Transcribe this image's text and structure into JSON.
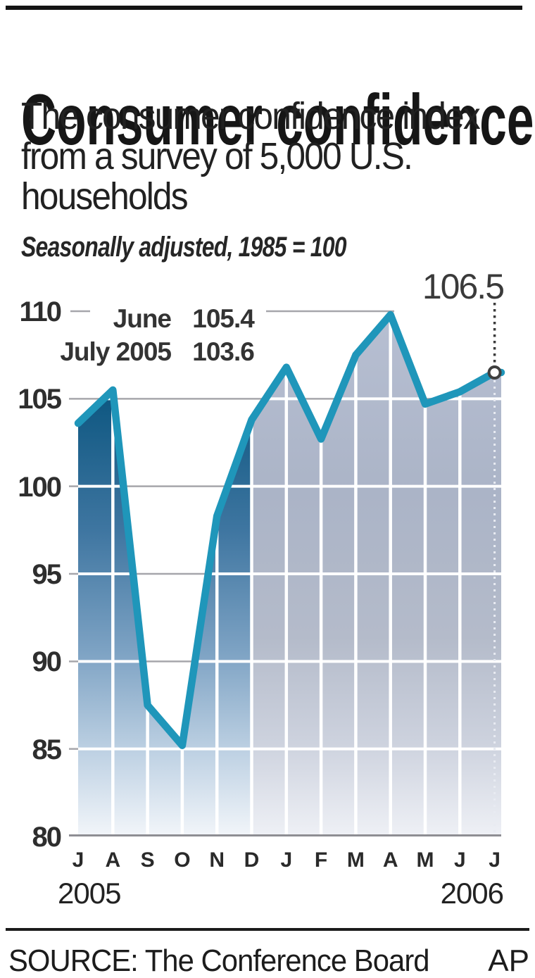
{
  "header": {
    "title": "Consumer confidence",
    "subtitle_lines": [
      "The consumer confidence index",
      "from a survey of 5,000 U.S.",
      "households"
    ],
    "note": "Seasonally adjusted, 1985 = 100"
  },
  "footer": {
    "source": "SOURCE: The Conference Board",
    "credit": "AP"
  },
  "chart_data": {
    "type": "area",
    "title": "Consumer confidence",
    "note": "Seasonally adjusted, 1985 = 100",
    "x_labels": [
      "J",
      "A",
      "S",
      "O",
      "N",
      "D",
      "J",
      "F",
      "M",
      "A",
      "M",
      "J",
      "J"
    ],
    "months_full": [
      "Jul 2005",
      "Aug 2005",
      "Sep 2005",
      "Oct 2005",
      "Nov 2005",
      "Dec 2005",
      "Jan 2006",
      "Feb 2006",
      "Mar 2006",
      "Apr 2006",
      "May 2006",
      "Jun 2006",
      "Jul 2006"
    ],
    "values": [
      103.6,
      105.5,
      87.5,
      85.2,
      98.3,
      103.8,
      106.8,
      102.7,
      107.5,
      109.8,
      104.7,
      105.4,
      106.5
    ],
    "ylim": [
      80,
      110
    ],
    "yticks": [
      80,
      85,
      90,
      95,
      100,
      105,
      110
    ],
    "split_index": 5,
    "year_left": "2005",
    "year_right": "2006",
    "callout_value": "106.5",
    "annotation_rows": [
      {
        "label": "June",
        "value": "105.4"
      },
      {
        "label": "July 2005",
        "value": "103.6"
      }
    ],
    "grid": true,
    "legend_position": "none",
    "colors": {
      "line": "#1f96ba",
      "gridline": "#a6a6ab",
      "axis": "#8e8e93",
      "marker_stroke": "#3f3f3f",
      "area_2005_stops": [
        [
          0,
          "#0b5078"
        ],
        [
          0.18,
          "#115983"
        ],
        [
          0.42,
          "#3f76a1"
        ],
        [
          0.65,
          "#7ea3c4"
        ],
        [
          0.85,
          "#c2d4e5"
        ],
        [
          1,
          "#f3f6fa"
        ]
      ],
      "area_2006_stops": [
        [
          0,
          "#b7bfd2"
        ],
        [
          0.35,
          "#abb4c7"
        ],
        [
          0.62,
          "#b4bbca"
        ],
        [
          0.82,
          "#cdd2de"
        ],
        [
          1,
          "#eff1f6"
        ]
      ]
    }
  }
}
